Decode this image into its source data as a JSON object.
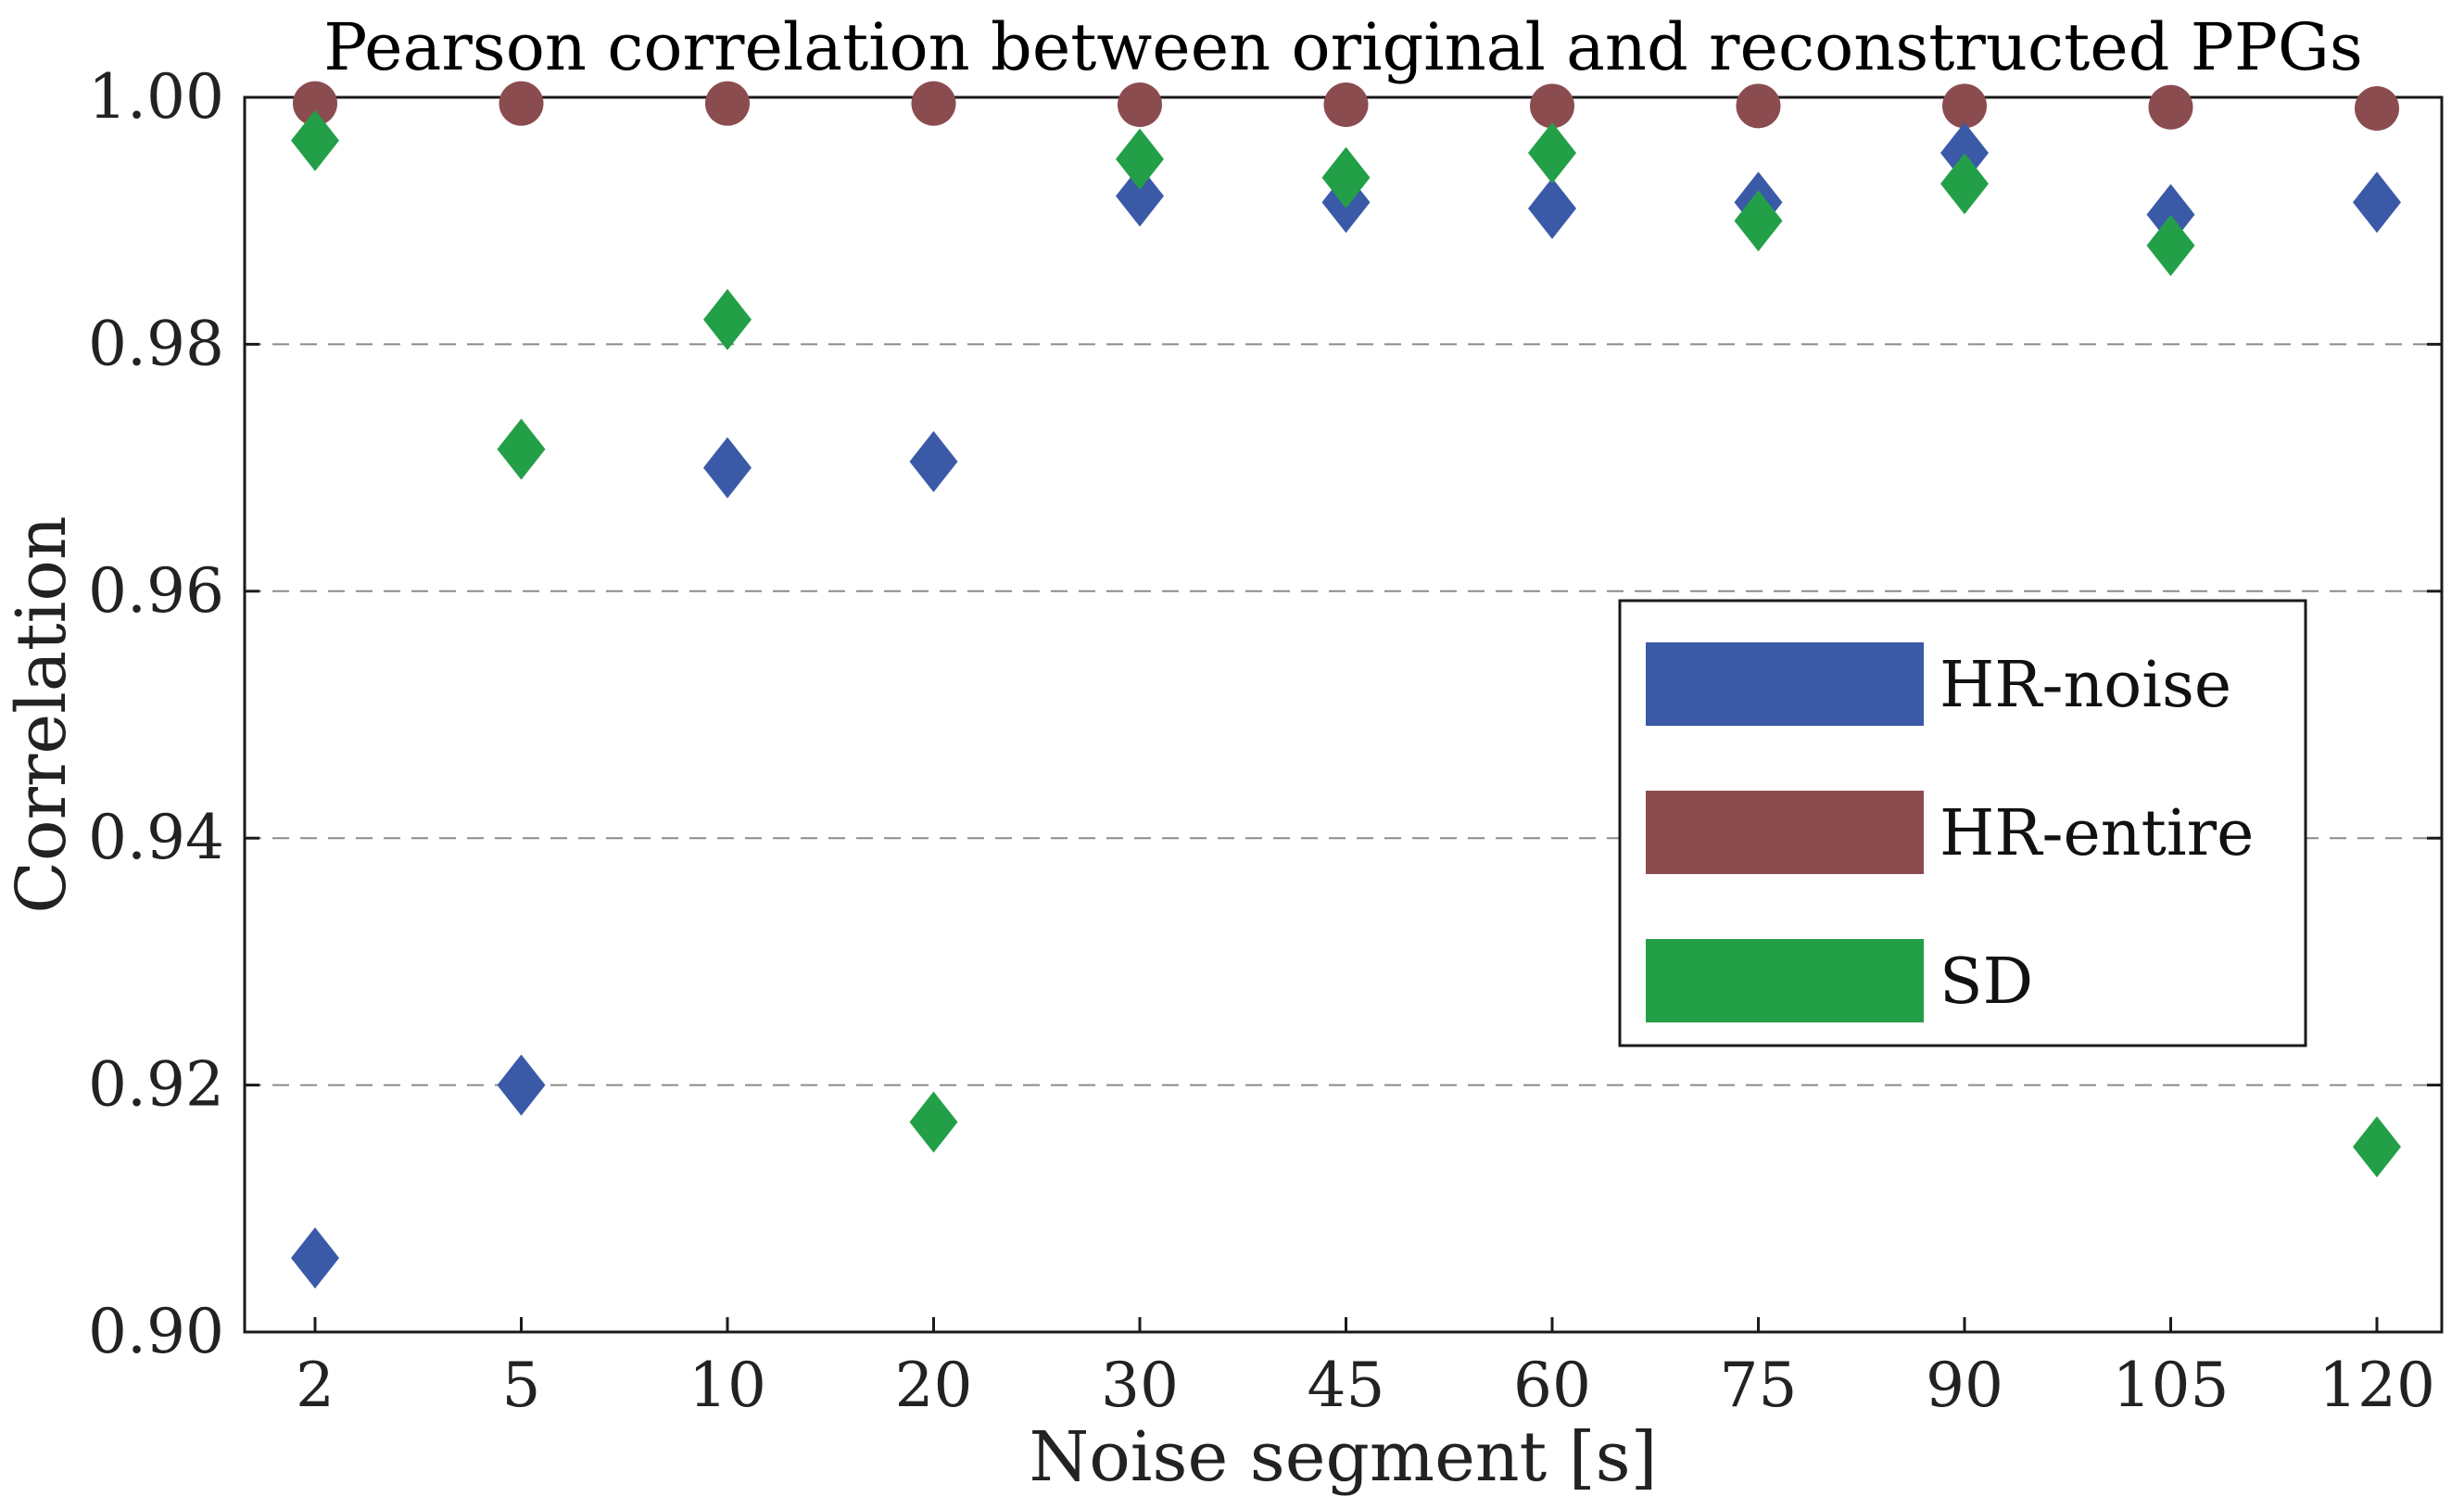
{
  "chart_data": {
    "type": "scatter",
    "title": "Pearson correlation between original and reconstructed PPGs",
    "xlabel": "Noise segment [s]",
    "ylabel": "Correlation",
    "categories": [
      "2",
      "5",
      "10",
      "20",
      "30",
      "45",
      "60",
      "75",
      "90",
      "105",
      "120"
    ],
    "ylim": [
      0.9,
      1.0
    ],
    "yticks": [
      0.9,
      0.92,
      0.94,
      0.96,
      0.98,
      1.0
    ],
    "ytick_labels": [
      "0.90",
      "0.92",
      "0.94",
      "0.96",
      "0.98",
      "1.00"
    ],
    "grid": "horizontal dashed",
    "legend_position": "center-right",
    "series": [
      {
        "name": "HR-noise",
        "marker": "diamond",
        "color": "#3a5aa8",
        "values": [
          0.906,
          0.92,
          0.97,
          0.9705,
          0.992,
          0.9915,
          0.991,
          0.9915,
          0.9955,
          0.9905,
          0.9915
        ]
      },
      {
        "name": "HR-entire",
        "marker": "circle",
        "color": "#8b4c50",
        "values": [
          0.9995,
          0.9995,
          0.9995,
          0.9995,
          0.9994,
          0.9994,
          0.9993,
          0.9993,
          0.9993,
          0.9992,
          0.9991
        ]
      },
      {
        "name": "SD",
        "marker": "diamond",
        "color": "#23a047",
        "values": [
          0.9965,
          0.9715,
          0.982,
          0.917,
          0.995,
          0.9935,
          0.9955,
          0.99,
          0.993,
          0.988,
          0.915
        ]
      }
    ]
  }
}
